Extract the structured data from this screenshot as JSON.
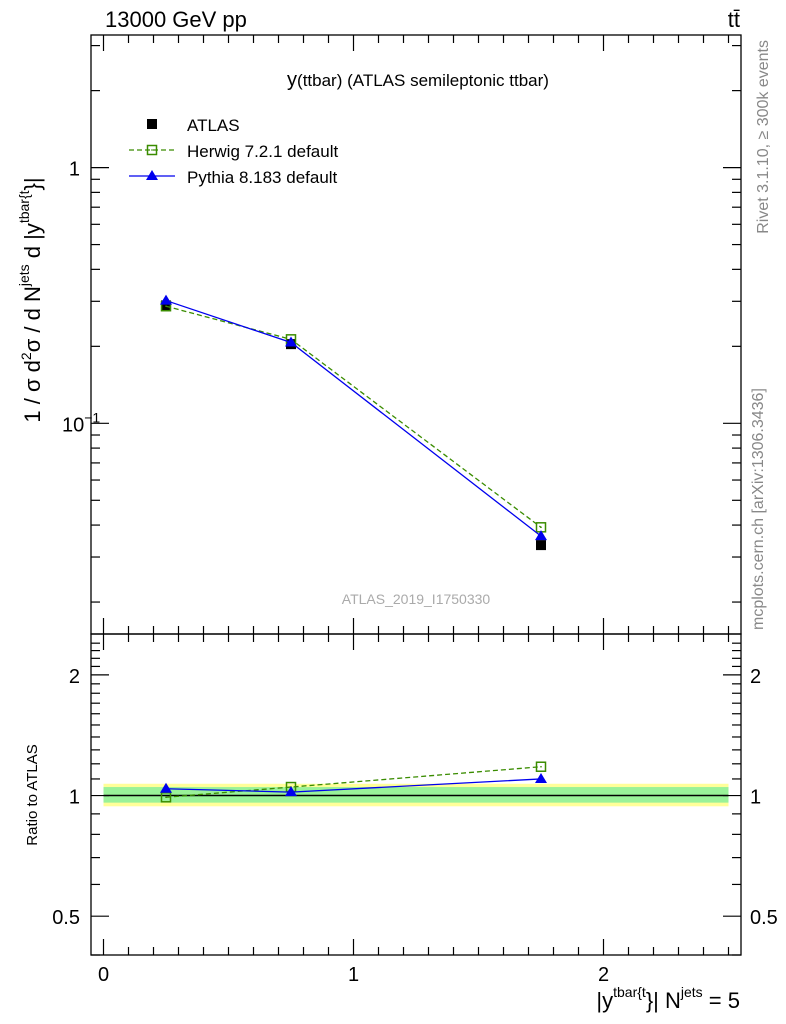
{
  "header": {
    "left": "13000 GeV pp",
    "right": "tt̄"
  },
  "side_labels": {
    "rivet": "Rivet 3.1.10, ≥ 300k events",
    "mcplots": "mcplots.cern.ch [arXiv:1306.3436]"
  },
  "watermark": "ATLAS_2019_I1750330",
  "chart_data": [
    {
      "type": "line",
      "title": "y(ttbar) (ATLAS semileptonic ttbar)",
      "title_parts": [
        "y",
        "(ttbar) (ATLAS semileptonic ttbar)"
      ],
      "ylabel": "1 / σ d²σ / d N^jets d |y^tbar{t}|",
      "ylabel_parts": [
        "1 / σ d",
        "2",
        "σ / d N",
        "jets",
        " d |y",
        "tbar{t",
        "}|"
      ],
      "yscale": "log",
      "ylim": [
        0.015,
        3.3
      ],
      "xlim": [
        -0.05,
        2.55
      ],
      "yticks": [
        {
          "v": 1,
          "label": "1"
        },
        {
          "v": 0.1,
          "label": "10",
          "sup": "−1"
        }
      ],
      "legend_position": "top-left",
      "x": [
        0.25,
        0.75,
        1.75
      ],
      "series": [
        {
          "name": "ATLAS",
          "color": "#000000",
          "marker": "filled-square",
          "values": [
            0.289,
            0.204,
            0.0334
          ]
        },
        {
          "name": "Herwig 7.2.1 default",
          "color": "#3a8c00",
          "marker": "open-square",
          "dash": true,
          "values": [
            0.287,
            0.213,
            0.0392
          ]
        },
        {
          "name": "Pythia 8.183 default",
          "color": "#0000ee",
          "marker": "triangle",
          "values": [
            0.302,
            0.207,
            0.0362
          ]
        }
      ]
    },
    {
      "type": "line",
      "ylabel": "Ratio to ATLAS",
      "xlabel": "|y^tbar{t}| N^jets = 5",
      "xlabel_parts": [
        "|y",
        "tbar{t",
        "}| N",
        "jets",
        " = 5"
      ],
      "yscale": "log",
      "ylim": [
        0.4,
        2.53
      ],
      "xlim": [
        -0.05,
        2.55
      ],
      "xticks": [
        {
          "v": 0,
          "label": "0"
        },
        {
          "v": 1,
          "label": "1"
        },
        {
          "v": 2,
          "label": "2"
        }
      ],
      "yticks": [
        {
          "v": 0.5,
          "label": "0.5"
        },
        {
          "v": 1,
          "label": "1"
        },
        {
          "v": 2,
          "label": "2"
        }
      ],
      "x": [
        0.25,
        0.75,
        1.75
      ],
      "bands": {
        "yellow": [
          0.94,
          1.07
        ],
        "green": [
          0.96,
          1.05
        ],
        "yellow_color": "#ffff99",
        "green_color": "#99f299"
      },
      "series": [
        {
          "name": "Herwig 7.2.1 default",
          "color": "#3a8c00",
          "marker": "open-square",
          "dash": true,
          "values": [
            0.99,
            1.05,
            1.18
          ]
        },
        {
          "name": "Pythia 8.183 default",
          "color": "#0000ee",
          "marker": "triangle",
          "values": [
            1.04,
            1.02,
            1.1
          ]
        }
      ]
    }
  ]
}
